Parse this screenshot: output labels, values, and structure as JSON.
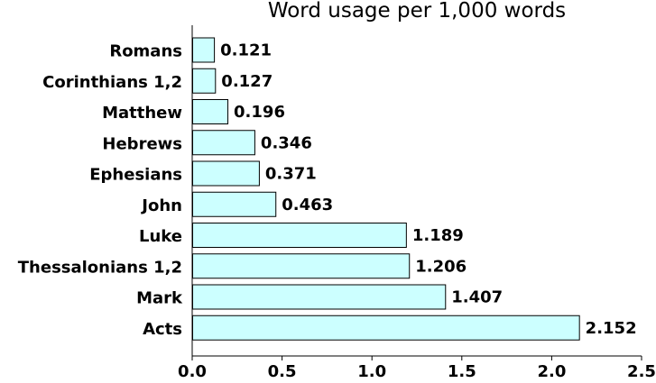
{
  "chart_data": {
    "type": "bar",
    "orientation": "horizontal",
    "title": "Word usage per 1,000 words",
    "xlabel": "",
    "ylabel": "",
    "xlim": [
      0,
      2.5
    ],
    "x_ticks": [
      0.0,
      0.5,
      1.0,
      1.5,
      2.0,
      2.5
    ],
    "x_tick_labels": [
      "0.0",
      "0.5",
      "1.0",
      "1.5",
      "2.0",
      "2.5"
    ],
    "categories": [
      "Romans",
      "Corinthians 1,2",
      "Matthew",
      "Hebrews",
      "Ephesians",
      "John",
      "Luke",
      "Thessalonians 1,2",
      "Mark",
      "Acts"
    ],
    "values": [
      0.121,
      0.127,
      0.196,
      0.346,
      0.371,
      0.463,
      1.189,
      1.206,
      1.407,
      2.152
    ],
    "value_labels": [
      "0.121",
      "0.127",
      "0.196",
      "0.346",
      "0.371",
      "0.463",
      "1.189",
      "1.206",
      "1.407",
      "2.152"
    ],
    "bar_color": "#ccffff",
    "bar_edge_color": "#000000",
    "grid": false
  }
}
